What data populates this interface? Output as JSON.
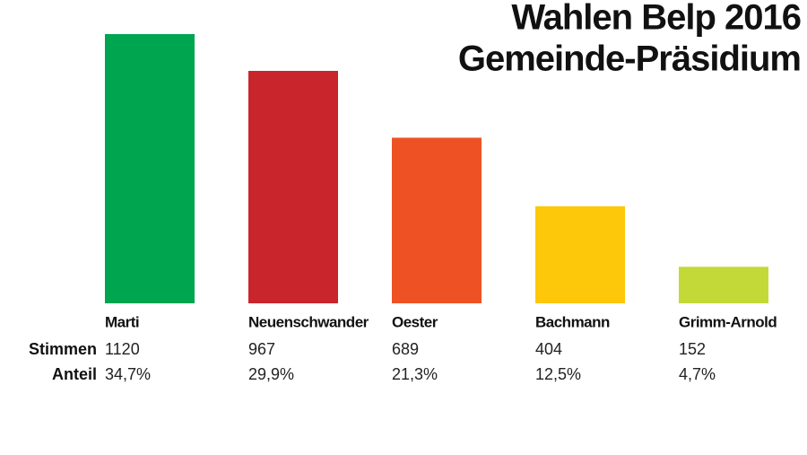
{
  "chart_data": {
    "type": "bar",
    "title": "Wahlen Belp 2016",
    "subtitle": "Gemeinde-Präsidium",
    "categories": [
      "Marti",
      "Neuenschwander",
      "Oester",
      "Bachmann",
      "Grimm-Arnold"
    ],
    "colors": [
      "#00a54f",
      "#c8262c",
      "#ee5224",
      "#fdc70a",
      "#c3d937"
    ],
    "series": [
      {
        "name": "Stimmen",
        "values": [
          1120,
          967,
          689,
          404,
          152
        ]
      }
    ],
    "shares": {
      "name": "Anteil",
      "values": [
        34.7,
        29.9,
        21.3,
        12.5,
        4.7
      ],
      "value_labels": [
        "34,7%",
        "29,9%",
        "21,3%",
        "12,5%",
        "4,7%"
      ]
    }
  }
}
